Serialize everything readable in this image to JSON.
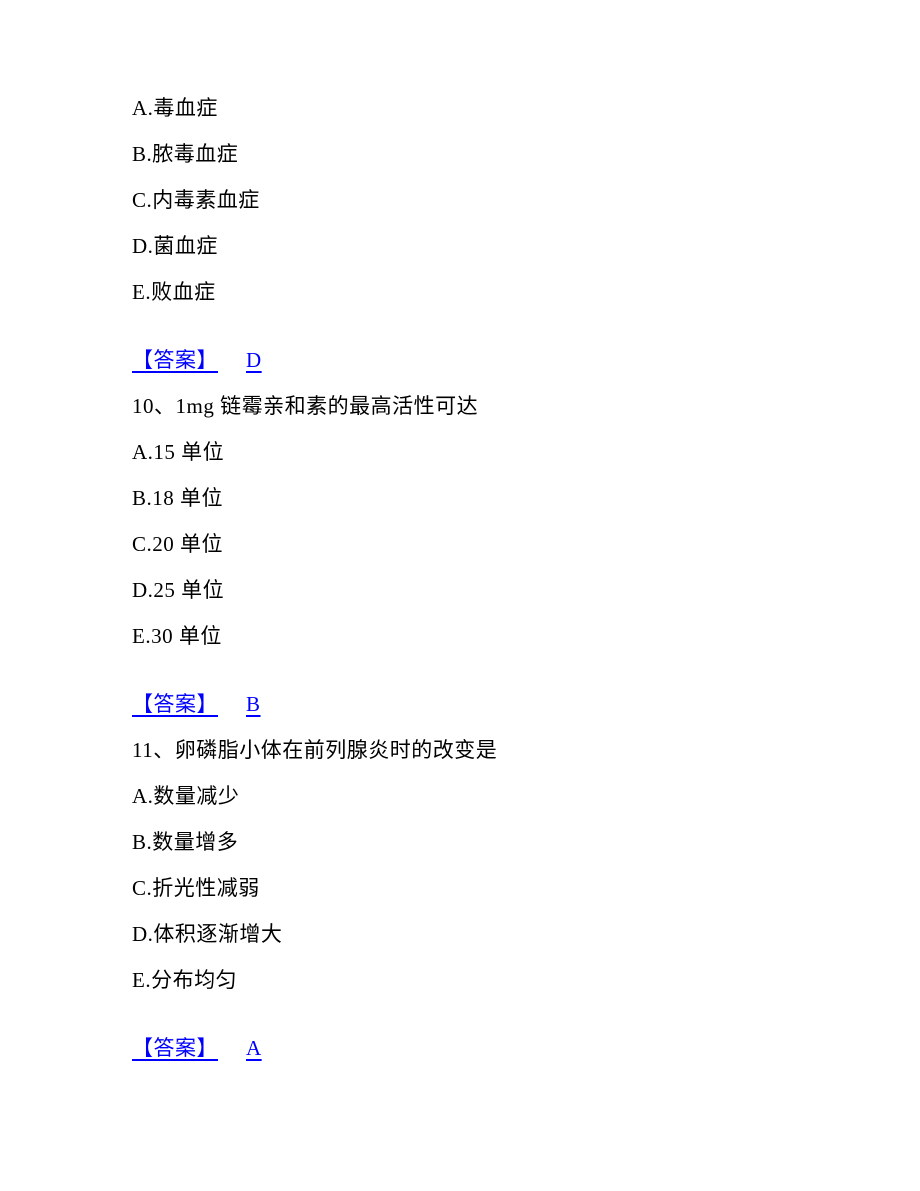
{
  "page": {
    "background_color": "#ffffff",
    "text_color": "#000000",
    "answer_color": "#0000ff",
    "font_family": "SimSun",
    "font_size_pt": 16
  },
  "q9": {
    "options": {
      "A": "A.毒血症",
      "B": "B.脓毒血症",
      "C": "C.内毒素血症",
      "D": "D.菌血症",
      "E": "E.败血症"
    },
    "answer_label": "【答案】",
    "answer_letter": "D"
  },
  "q10": {
    "stem": "10、1mg 链霉亲和素的最高活性可达",
    "options": {
      "A": "A.15 单位",
      "B": "B.18 单位",
      "C": "C.20 单位",
      "D": "D.25 单位",
      "E": "E.30 单位"
    },
    "answer_label": "【答案】",
    "answer_letter": "B"
  },
  "q11": {
    "stem": "11、卵磷脂小体在前列腺炎时的改变是",
    "options": {
      "A": "A.数量减少",
      "B": "B.数量增多",
      "C": "C.折光性减弱",
      "D": "D.体积逐渐增大",
      "E": "E.分布均匀"
    },
    "answer_label": "【答案】",
    "answer_letter": "A"
  }
}
